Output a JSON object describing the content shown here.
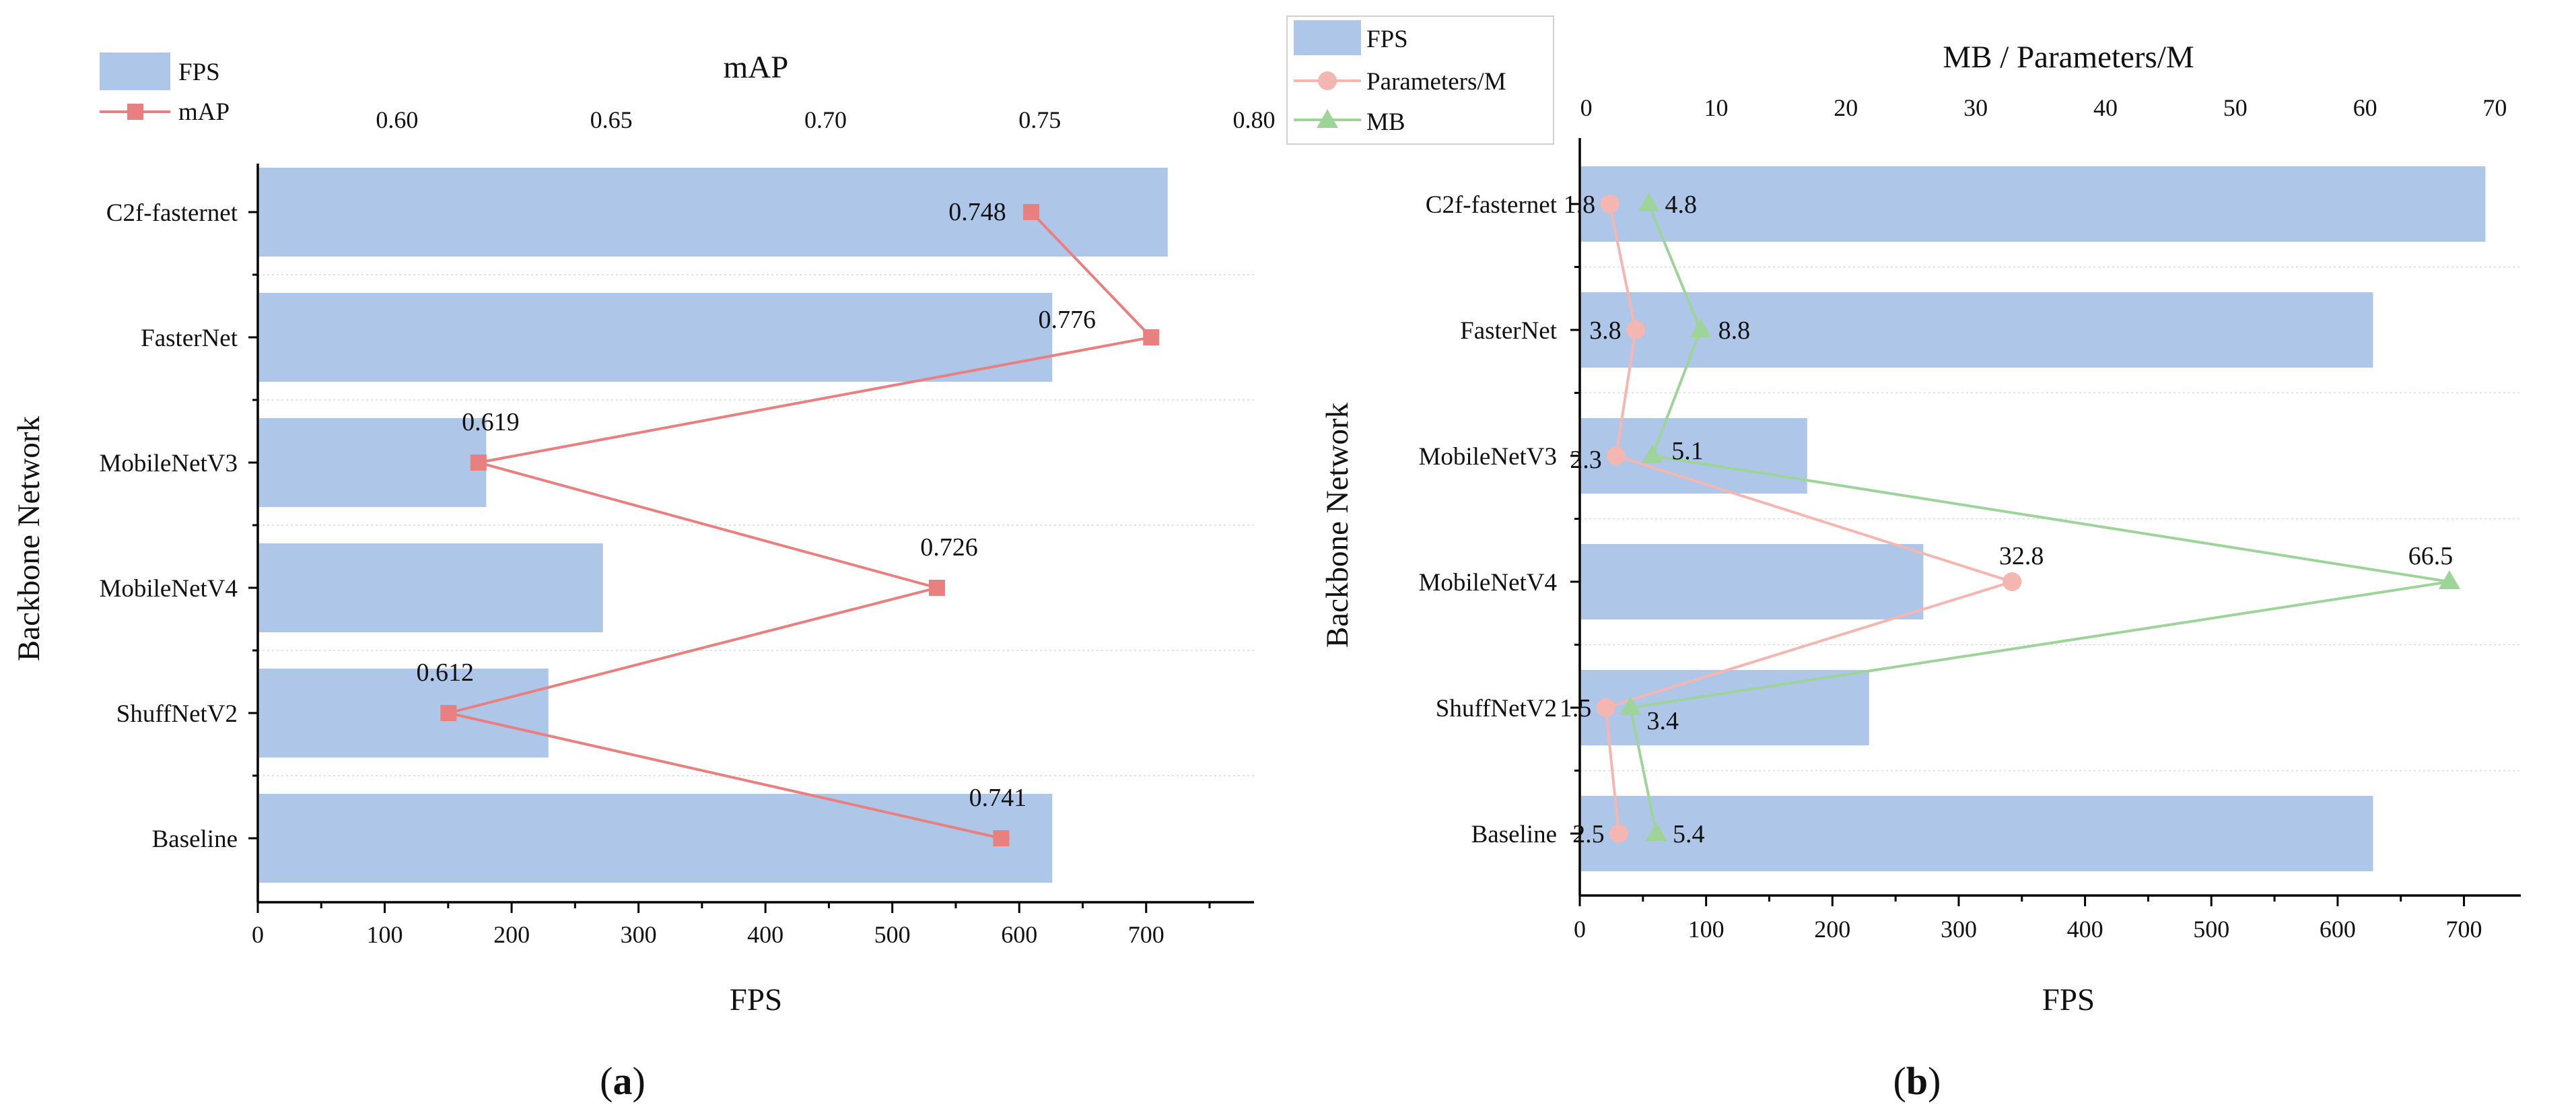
{
  "chart_data": [
    {
      "type": "bar+line",
      "panel_label": "(a)",
      "categories": [
        "C2f-fasternet",
        "FasterNet",
        "MobileNetV3",
        "MobileNetV4",
        "ShuffNetV2",
        "Baseline"
      ],
      "series": [
        {
          "name": "FPS",
          "kind": "bar",
          "axis": "bottom",
          "color": "#aec6e8",
          "values": [
            717,
            626,
            180,
            272,
            229,
            626
          ]
        },
        {
          "name": "mAP",
          "kind": "line",
          "marker": "square",
          "axis": "top",
          "color": "#e88080",
          "values": [
            0.748,
            0.776,
            0.619,
            0.726,
            0.612,
            0.741
          ],
          "labels": [
            "0.748",
            "0.776",
            "0.619",
            "0.726",
            "0.612",
            "0.741"
          ]
        }
      ],
      "xlabel": "FPS",
      "ylabel": "Backbone Network",
      "top_xlabel": "mAP",
      "xlim": [
        0,
        785
      ],
      "top_xlim": [
        0.5675,
        0.8
      ],
      "x_ticks": [
        "0",
        "100",
        "200",
        "300",
        "400",
        "500",
        "600",
        "700"
      ],
      "top_ticks": [
        "0.60",
        "0.65",
        "0.70",
        "0.75",
        "0.80"
      ],
      "legend": [
        {
          "label": "FPS",
          "symbol": "bar"
        },
        {
          "label": "mAP",
          "symbol": "line-square"
        }
      ],
      "legend_position": "top-left"
    },
    {
      "type": "bar+line",
      "panel_label": "(b)",
      "categories": [
        "C2f-fasternet",
        "FasterNet",
        "MobileNetV3",
        "MobileNetV4",
        "ShuffNetV2",
        "Baseline"
      ],
      "series": [
        {
          "name": "FPS",
          "kind": "bar",
          "axis": "bottom",
          "color": "#aec6e8",
          "values": [
            717,
            628,
            180,
            272,
            229,
            628
          ]
        },
        {
          "name": "Parameters/M",
          "kind": "line",
          "marker": "circle",
          "axis": "top",
          "color": "#f4b6b0",
          "values": [
            1.8,
            3.8,
            2.3,
            32.8,
            1.5,
            2.5
          ],
          "labels": [
            "1.8",
            "3.8",
            "2.3",
            "32.8",
            "1.5",
            "2.5"
          ]
        },
        {
          "name": "MB",
          "kind": "line",
          "marker": "triangle",
          "axis": "top",
          "color": "#9ed49a",
          "values": [
            4.8,
            8.8,
            5.1,
            66.5,
            3.4,
            5.4
          ],
          "labels": [
            "4.8",
            "8.8",
            "5.1",
            "66.5",
            "3.4",
            "5.4"
          ]
        }
      ],
      "xlabel": "FPS",
      "ylabel": "Backbone Network",
      "top_xlabel": "MB / Parameters/M",
      "xlim": [
        0,
        745
      ],
      "top_xlim": [
        -0.5,
        72
      ],
      "x_ticks": [
        "0",
        "100",
        "200",
        "300",
        "400",
        "500",
        "600",
        "700"
      ],
      "top_ticks": [
        "0",
        "10",
        "20",
        "30",
        "40",
        "50",
        "60",
        "70"
      ],
      "legend": [
        {
          "label": "FPS",
          "symbol": "bar"
        },
        {
          "label": "Parameters/M",
          "symbol": "line-circle"
        },
        {
          "label": "MB",
          "symbol": "line-triangle"
        }
      ],
      "legend_position": "top-left"
    }
  ]
}
